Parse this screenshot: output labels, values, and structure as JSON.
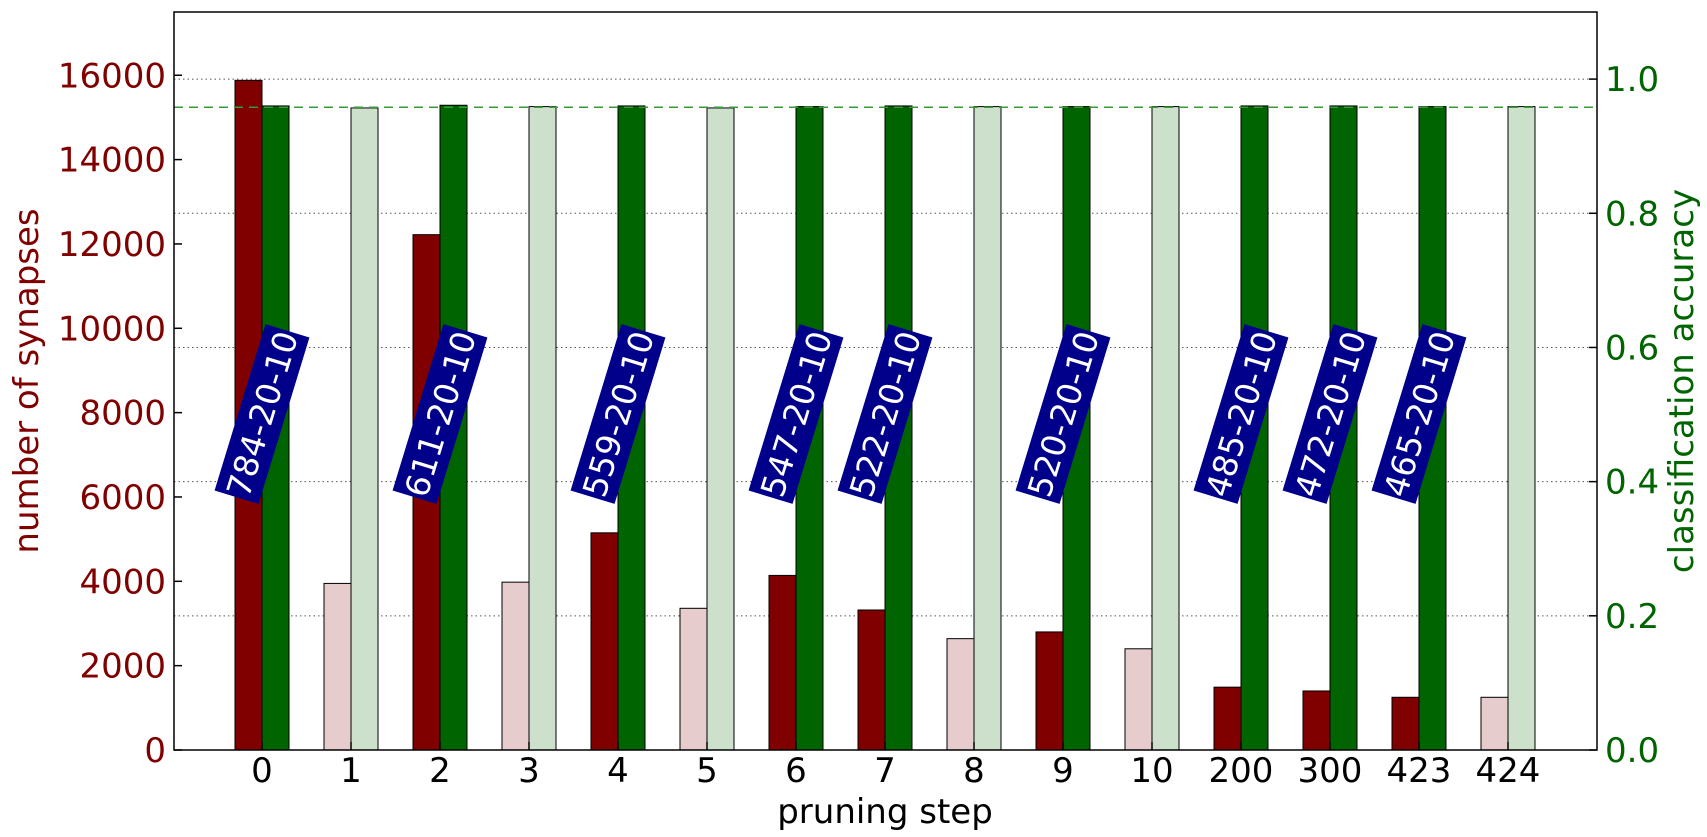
{
  "chart_data": {
    "type": "bar",
    "title": "",
    "xlabel": "pruning step",
    "ylabel_left": "number of synapses",
    "ylabel_right": "classification accuracy",
    "categories": [
      "0",
      "1",
      "2",
      "3",
      "4",
      "5",
      "6",
      "7",
      "8",
      "9",
      "10",
      "200",
      "300",
      "423",
      "424"
    ],
    "ylim_left": [
      0,
      17500
    ],
    "ylim_right": [
      0,
      1.1
    ],
    "yticks_left": [
      0,
      2000,
      4000,
      6000,
      8000,
      10000,
      12000,
      14000,
      16000
    ],
    "yticks_right": [
      "0.0",
      "0.2",
      "0.4",
      "0.6",
      "0.8",
      "1.0"
    ],
    "grid": "horizontal dotted at right-axis ticks",
    "reference_line": {
      "axis": "right",
      "value": 0.958,
      "style": "dashed"
    },
    "series": [
      {
        "axis": "left",
        "values": [
          15880,
          3950,
          12220,
          3980,
          5150,
          3360,
          4140,
          3320,
          2640,
          2800,
          2400,
          1490,
          1400,
          1250,
          1250
        ]
      },
      {
        "axis": "right",
        "values": [
          0.96,
          0.957,
          0.961,
          0.959,
          0.96,
          0.957,
          0.959,
          0.96,
          0.959,
          0.959,
          0.959,
          0.96,
          0.96,
          0.959,
          0.959
        ]
      }
    ],
    "highlighted": [
      true,
      false,
      true,
      false,
      true,
      false,
      true,
      true,
      false,
      true,
      false,
      true,
      true,
      true,
      false
    ],
    "annotations": [
      {
        "category": "0",
        "text": "784-20-10"
      },
      {
        "category": "2",
        "text": "611-20-10"
      },
      {
        "category": "4",
        "text": "559-20-10"
      },
      {
        "category": "6",
        "text": "547-20-10"
      },
      {
        "category": "7",
        "text": "522-20-10"
      },
      {
        "category": "9",
        "text": "520-20-10"
      },
      {
        "category": "200",
        "text": "485-20-10"
      },
      {
        "category": "300",
        "text": "472-20-10"
      },
      {
        "category": "423",
        "text": "465-20-10"
      }
    ],
    "colors": {
      "left_dark": "#800000",
      "left_light": "#e6cccc",
      "right_dark": "#006400",
      "right_light": "#cce0cc",
      "reference_line": "#3a9a3a",
      "annotation_box": "#00008b",
      "left_axis_text": "#800000",
      "right_axis_text": "#006400"
    }
  }
}
